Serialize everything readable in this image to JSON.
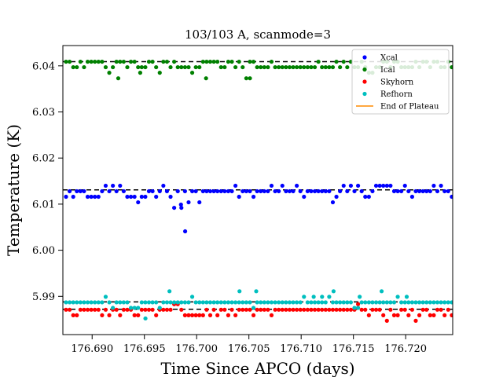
{
  "chart_data": {
    "type": "scatter",
    "title": "103/103 A, scanmode=3",
    "xlabel": "Time Since APCO (days)",
    "ylabel": "Temperature (K)",
    "xlim": [
      176.6872,
      176.7245
    ],
    "ylim": [
      5.9817,
      6.0444
    ],
    "xticks": [
      176.69,
      176.695,
      176.7,
      176.705,
      176.71,
      176.715,
      176.72
    ],
    "xtick_labels": [
      "176.690",
      "176.695",
      "176.700",
      "176.705",
      "176.710",
      "176.715",
      "176.720"
    ],
    "yticks": [
      5.99,
      6.0,
      6.01,
      6.02,
      6.03,
      6.04
    ],
    "ytick_labels": [
      "5.99",
      "6.00",
      "6.01",
      "6.02",
      "6.03",
      "6.04"
    ],
    "grid": false,
    "legend_placement": "top-right",
    "reference_lines": [
      6.0409,
      6.0131,
      5.9888,
      5.9872
    ],
    "series": [
      {
        "name": "Xcal",
        "color": "#0000ff",
        "base": 6.0128,
        "offsets": [
          -0.0012,
          0.0,
          -0.0012,
          0.0,
          0.0,
          0.0,
          -0.0012,
          -0.0012,
          -0.0012,
          -0.0012,
          0.0,
          0.0012,
          0.0,
          0.0012,
          0.0,
          0.0012,
          0.0,
          -0.0012,
          -0.0012,
          -0.0012,
          -0.0024,
          -0.0012,
          -0.0012,
          0.0,
          0.0,
          -0.0012,
          0.0,
          0.0012,
          0.0,
          -0.0012,
          -0.0036,
          0.0,
          -0.0036,
          0.0,
          -0.0024,
          0.0,
          0.0,
          -0.0024,
          0.0,
          0.0,
          0.0,
          0.0,
          0.0,
          0.0,
          0.0,
          0.0,
          0.0,
          0.0012,
          -0.0012,
          0.0,
          0.0,
          0.0,
          -0.0012,
          0.0,
          0.0,
          0.0,
          0.0,
          0.0012,
          0.0,
          0.0,
          0.0012,
          0.0,
          0.0,
          0.0,
          0.0012,
          0.0,
          -0.0012,
          0.0,
          0.0,
          0.0,
          0.0,
          0.0,
          0.0,
          0.0,
          -0.0024,
          -0.0012,
          0.0,
          0.0012,
          0.0,
          0.0012,
          0.0,
          0.0012,
          0.0,
          -0.0012,
          -0.0012,
          0.0,
          0.0012,
          0.0012,
          0.0012,
          0.0012,
          0.0012,
          0.0,
          0.0,
          0.0,
          0.0012,
          0.0,
          -0.0012,
          0.0,
          0.0,
          0.0,
          0.0,
          0.0,
          0.0012,
          0.0,
          0.0012,
          0.0,
          0.0,
          -0.0012
        ],
        "outliers": [
          [
            176.6985,
            6.0099
          ],
          [
            176.6989,
            6.0041
          ]
        ]
      },
      {
        "name": "Ical",
        "color": "#008000",
        "base": 6.0397,
        "offsets": [
          0.0012,
          0.0012,
          0.0,
          0.0,
          0.0012,
          0.0,
          0.0012,
          0.0012,
          0.0012,
          0.0012,
          0.0012,
          0.0,
          -0.0012,
          0.0,
          0.0012,
          0.0012,
          0.0012,
          0.0,
          0.0012,
          0.0012,
          0.0,
          0.0,
          0.0,
          0.0012,
          0.0012,
          0.0,
          -0.0012,
          0.0012,
          0.0012,
          0.0,
          0.0012,
          0.0,
          0.0,
          0.0,
          0.0,
          -0.0012,
          0.0,
          0.0,
          0.0012,
          0.0012,
          0.0012,
          0.0012,
          0.0012,
          0.0,
          0.0,
          0.0012,
          0.0012,
          0.0,
          0.0012,
          0.0,
          -0.0024,
          0.0012,
          0.0012,
          0.0,
          0.0,
          0.0,
          0.0,
          0.0012,
          0.0,
          0.0,
          0.0,
          0.0,
          0.0,
          0.0,
          0.0,
          0.0,
          0.0,
          0.0,
          0.0,
          0.0,
          0.0012,
          0.0,
          0.0,
          0.0,
          0.0,
          0.0012,
          0.0,
          0.0012,
          0.0,
          0.0012,
          0.0,
          0.0,
          0.0012,
          0.0,
          -0.0012,
          -0.0012,
          0.0,
          0.0,
          0.0012,
          0.0012,
          0.0,
          0.0012,
          0.0012,
          0.0,
          0.0,
          0.0,
          0.0,
          0.0012,
          0.0,
          0.0012,
          0.0012,
          0.0,
          0.0012,
          0.0012,
          0.0,
          0.0,
          0.0012,
          0.0
        ],
        "outliers": [
          [
            176.6925,
            6.0373
          ],
          [
            176.6946,
            6.0385
          ],
          [
            176.7009,
            6.0373
          ],
          [
            176.7051,
            6.0373
          ]
        ]
      },
      {
        "name": "Skyhorn",
        "color": "#ff0000",
        "base": 5.9871,
        "offsets": [
          0.0,
          0.0,
          -0.0012,
          -0.0012,
          0.0,
          0.0,
          0.0,
          0.0,
          0.0,
          0.0,
          -0.0012,
          0.0,
          -0.0012,
          0.0,
          0.0,
          -0.0012,
          0.0,
          0.0,
          0.0,
          -0.0012,
          -0.0012,
          0.0,
          0.0,
          0.0,
          0.0,
          -0.0012,
          0.0,
          0.0,
          0.0,
          0.0,
          0.0012,
          0.0012,
          0.0,
          -0.0012,
          -0.0012,
          -0.0012,
          -0.0012,
          -0.0012,
          -0.0012,
          0.0,
          -0.0012,
          0.0,
          -0.0012,
          0.0,
          0.0,
          -0.0012,
          0.0,
          -0.0012,
          0.0,
          0.0,
          0.0,
          0.0,
          -0.0012,
          0.0,
          0.0,
          0.0,
          0.0,
          -0.0012,
          0.0,
          0.0,
          0.0,
          0.0,
          0.0,
          0.0,
          0.0,
          0.0,
          0.0,
          0.0,
          0.0,
          0.0,
          0.0,
          0.0,
          0.0,
          0.0,
          0.0,
          0.0,
          0.0,
          0.0,
          0.0,
          0.0,
          0.0,
          0.0012,
          0.0,
          0.0,
          -0.0012,
          0.0,
          0.0,
          0.0,
          -0.0012,
          -0.0024,
          0.0,
          -0.0012,
          -0.0012,
          0.0,
          0.0,
          -0.0012,
          0.0,
          -0.0024,
          -0.0012,
          0.0,
          0.0,
          -0.0012,
          -0.0012,
          0.0,
          0.0,
          -0.0012,
          0.0,
          -0.0012
        ],
        "outliers": []
      },
      {
        "name": "Refhorn",
        "color": "#00bfbf",
        "base": 5.9887,
        "offsets": [
          0.0,
          0.0,
          0.0,
          0.0,
          0.0,
          0.0,
          0.0,
          0.0,
          0.0,
          0.0,
          0.0,
          0.0012,
          0.0,
          -0.0012,
          0.0,
          0.0,
          0.0,
          0.0,
          -0.0012,
          -0.0012,
          -0.0012,
          0.0,
          0.0,
          0.0,
          0.0,
          0.0,
          -0.0012,
          0.0,
          0.0,
          0.0,
          0.0,
          0.0,
          0.0,
          0.0,
          0.0,
          0.0012,
          0.0,
          0.0,
          0.0,
          0.0,
          0.0,
          0.0,
          0.0,
          0.0,
          0.0,
          0.0,
          0.0,
          0.0,
          0.0,
          0.0,
          0.0,
          0.0,
          -0.0012,
          0.0,
          0.0,
          0.0,
          0.0,
          0.0,
          0.0,
          0.0,
          0.0,
          0.0,
          0.0,
          0.0,
          0.0,
          0.0,
          0.0012,
          0.0,
          0.0,
          0.0,
          0.0,
          0.0,
          0.0,
          0.0012,
          0.0,
          0.0,
          0.0,
          0.0,
          0.0,
          0.0,
          -0.0012,
          -0.0012,
          0.0,
          0.0,
          0.0,
          0.0,
          0.0,
          0.0,
          0.0,
          0.0,
          0.0,
          0.0,
          0.0012,
          0.0,
          0.0,
          0.0,
          0.0,
          0.0,
          0.0,
          0.0,
          0.0,
          0.0,
          0.0,
          0.0,
          0.0,
          0.0,
          0.0,
          0.0
        ],
        "outliers": [
          [
            176.6951,
            5.9852
          ],
          [
            176.6974,
            5.9911
          ],
          [
            176.7041,
            5.9911
          ],
          [
            176.7057,
            5.9911
          ],
          [
            176.7112,
            5.9899
          ],
          [
            176.712,
            5.9899
          ],
          [
            176.7131,
            5.9911
          ],
          [
            176.7156,
            5.9899
          ],
          [
            176.7177,
            5.9911
          ],
          [
            176.7201,
            5.9899
          ]
        ]
      },
      {
        "name": "End of Plateau",
        "color": "#ff8c00",
        "values": []
      }
    ]
  }
}
